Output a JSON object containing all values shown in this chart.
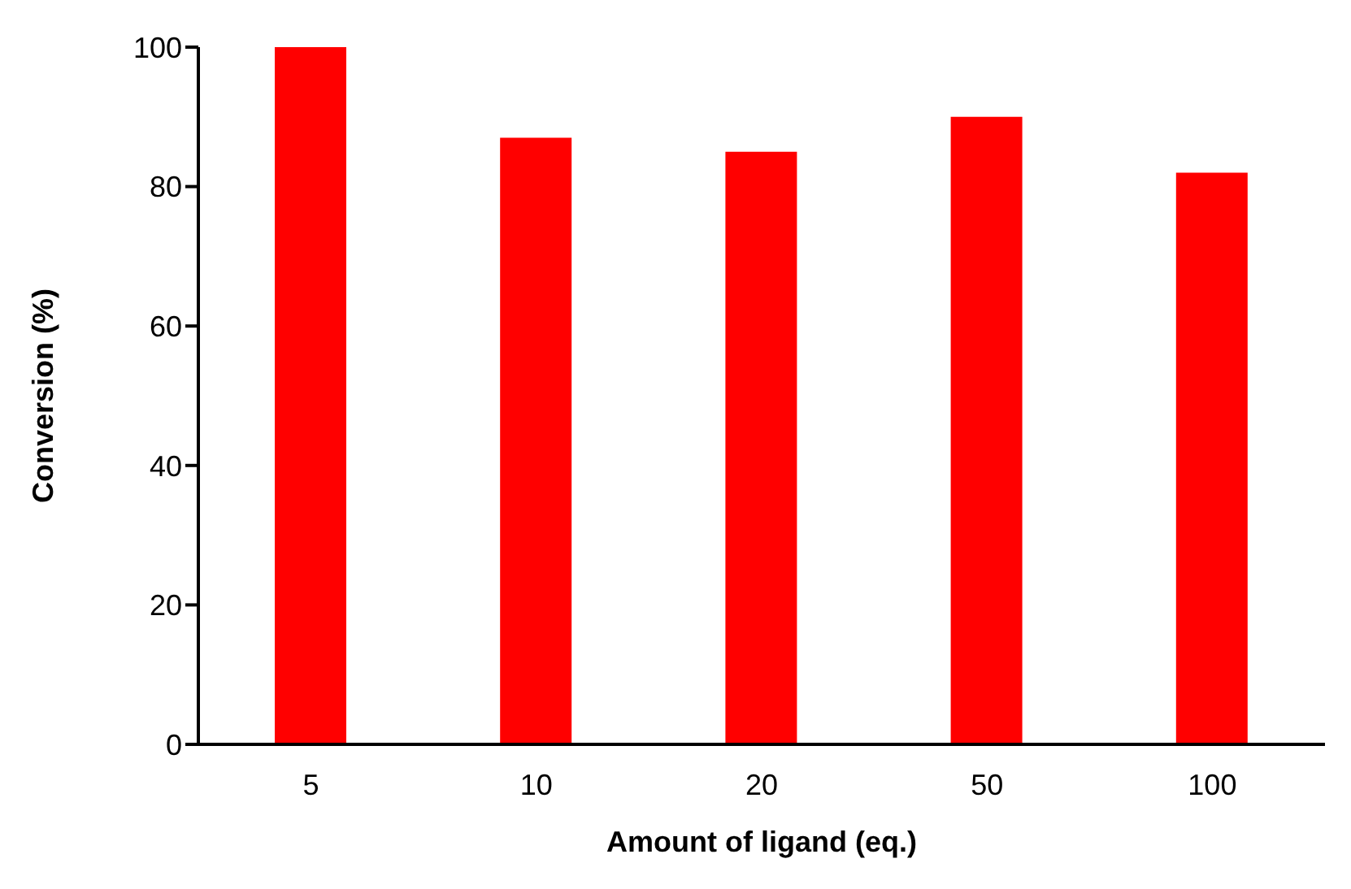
{
  "chart_data": {
    "type": "bar",
    "xlabel": "Amount of ligand (eq.)",
    "ylabel": "Conversion (%)",
    "categories": [
      "5",
      "10",
      "20",
      "50",
      "100"
    ],
    "series": [
      {
        "color": "#ff0000",
        "values": [
          100,
          87,
          85,
          90,
          82
        ]
      }
    ],
    "ylim": [
      0,
      100
    ],
    "yticks": [
      0,
      20,
      40,
      60,
      80,
      100
    ],
    "grid": false,
    "legend": false
  }
}
